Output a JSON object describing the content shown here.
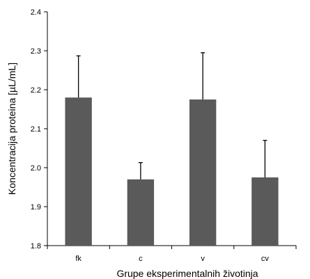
{
  "chart_data": {
    "type": "bar",
    "title": "",
    "xlabel": "Grupe eksperimentalnih životinja",
    "ylabel": "Koncentracija proteina [µL/mL]",
    "categories": [
      "fk",
      "c",
      "v",
      "cv"
    ],
    "values": [
      2.18,
      1.97,
      2.175,
      1.975
    ],
    "error_plus": [
      0.107,
      0.043,
      0.12,
      0.095
    ],
    "ylim": [
      1.8,
      2.4
    ],
    "yticks": [
      "1.8",
      "1.9",
      "2.0",
      "2.1",
      "2.2",
      "2.3",
      "2.4"
    ],
    "grid": false,
    "legend": "none",
    "bar_color": "#5a5a5a",
    "axis_color": "#000000"
  }
}
